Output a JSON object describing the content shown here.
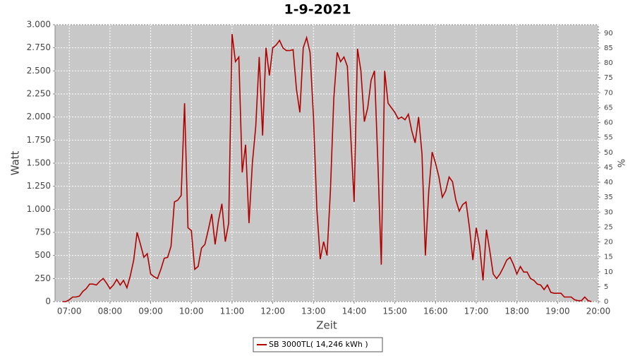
{
  "chart_data": {
    "type": "line",
    "title": "1-9-2021",
    "x_label": "Zeit",
    "y_label": "Watt",
    "y2_label": "%",
    "x": [
      "06:50",
      "06:55",
      "07:00",
      "07:05",
      "07:10",
      "07:15",
      "07:20",
      "07:25",
      "07:30",
      "07:35",
      "07:40",
      "07:45",
      "07:50",
      "07:55",
      "08:00",
      "08:05",
      "08:10",
      "08:15",
      "08:20",
      "08:25",
      "08:30",
      "08:35",
      "08:40",
      "08:45",
      "08:50",
      "08:55",
      "09:00",
      "09:05",
      "09:10",
      "09:15",
      "09:20",
      "09:25",
      "09:30",
      "09:35",
      "09:40",
      "09:45",
      "09:50",
      "09:55",
      "10:00",
      "10:05",
      "10:10",
      "10:15",
      "10:20",
      "10:25",
      "10:30",
      "10:35",
      "10:40",
      "10:45",
      "10:50",
      "10:55",
      "11:00",
      "11:05",
      "11:10",
      "11:15",
      "11:20",
      "11:25",
      "11:30",
      "11:35",
      "11:40",
      "11:45",
      "11:50",
      "11:55",
      "12:00",
      "12:05",
      "12:10",
      "12:15",
      "12:20",
      "12:25",
      "12:30",
      "12:35",
      "12:40",
      "12:45",
      "12:50",
      "12:55",
      "13:00",
      "13:05",
      "13:10",
      "13:15",
      "13:20",
      "13:25",
      "13:30",
      "13:35",
      "13:40",
      "13:45",
      "13:50",
      "13:55",
      "14:00",
      "14:05",
      "14:10",
      "14:15",
      "14:20",
      "14:25",
      "14:30",
      "14:35",
      "14:40",
      "14:45",
      "14:50",
      "14:55",
      "15:00",
      "15:05",
      "15:10",
      "15:15",
      "15:20",
      "15:25",
      "15:30",
      "15:35",
      "15:40",
      "15:45",
      "15:50",
      "15:55",
      "16:00",
      "16:05",
      "16:10",
      "16:15",
      "16:20",
      "16:25",
      "16:30",
      "16:35",
      "16:40",
      "16:45",
      "16:50",
      "16:55",
      "17:00",
      "17:05",
      "17:10",
      "17:15",
      "17:20",
      "17:25",
      "17:30",
      "17:35",
      "17:40",
      "17:45",
      "17:50",
      "17:55",
      "18:00",
      "18:05",
      "18:10",
      "18:15",
      "18:20",
      "18:25",
      "18:30",
      "18:35",
      "18:40",
      "18:45",
      "18:50",
      "18:55",
      "19:00",
      "19:05",
      "19:10",
      "19:15",
      "19:20",
      "19:25",
      "19:30",
      "19:35",
      "19:40",
      "19:45",
      "19:50"
    ],
    "series": [
      {
        "name": "SB 3000TL( 14,246 kWh )",
        "color": "#b00000",
        "values": [
          0,
          0,
          20,
          50,
          50,
          60,
          110,
          140,
          190,
          190,
          180,
          220,
          250,
          200,
          140,
          180,
          240,
          180,
          230,
          150,
          280,
          450,
          750,
          620,
          480,
          520,
          300,
          270,
          250,
          350,
          470,
          480,
          600,
          1080,
          1100,
          1150,
          2150,
          800,
          770,
          350,
          380,
          580,
          620,
          780,
          950,
          620,
          880,
          1060,
          650,
          850,
          2900,
          2600,
          2650,
          1400,
          1700,
          850,
          1500,
          1900,
          2650,
          1800,
          2750,
          2450,
          2750,
          2780,
          2830,
          2750,
          2720,
          2720,
          2730,
          2300,
          2050,
          2750,
          2860,
          2700,
          2000,
          1000,
          460,
          650,
          500,
          1200,
          2200,
          2700,
          2600,
          2650,
          2550,
          1800,
          1080,
          2740,
          2500,
          1950,
          2100,
          2400,
          2500,
          1500,
          400,
          2500,
          2150,
          2100,
          2050,
          1980,
          2000,
          1970,
          2030,
          1850,
          1720,
          2000,
          1600,
          500,
          1200,
          1620,
          1500,
          1350,
          1130,
          1200,
          1350,
          1300,
          1100,
          980,
          1050,
          1080,
          800,
          450,
          800,
          600,
          230,
          780,
          550,
          300,
          250,
          300,
          370,
          450,
          480,
          400,
          300,
          380,
          320,
          320,
          250,
          230,
          190,
          180,
          130,
          180,
          100,
          90,
          90,
          90,
          50,
          50,
          50,
          20,
          10,
          10,
          50,
          10,
          0
        ]
      }
    ],
    "xlim": [
      "06:39",
      "20:00"
    ],
    "xticks": [
      "07:00",
      "08:00",
      "09:00",
      "10:00",
      "11:00",
      "12:00",
      "13:00",
      "14:00",
      "15:00",
      "16:00",
      "17:00",
      "18:00",
      "19:00",
      "20:00"
    ],
    "ylim": [
      0,
      3000
    ],
    "yticks": [
      0,
      250,
      500,
      750,
      {
        "value": 1000,
        "label": "1.000"
      },
      {
        "value": 1250,
        "label": "1.250"
      },
      {
        "value": 1500,
        "label": "1.500"
      },
      {
        "value": 1750,
        "label": "1.750"
      },
      {
        "value": 2000,
        "label": "2.000"
      },
      {
        "value": 2250,
        "label": "2.250"
      },
      {
        "value": 2500,
        "label": "2.500"
      },
      {
        "value": 2750,
        "label": "2.750"
      },
      {
        "value": 3000,
        "label": "3.000"
      }
    ],
    "y2lim": [
      0,
      92.8
    ],
    "y2ticks": [
      0,
      5,
      10,
      15,
      20,
      25,
      30,
      35,
      40,
      45,
      50,
      55,
      60,
      65,
      70,
      75,
      80,
      85,
      90
    ],
    "grid": true,
    "plot_background": "#c8c8c8",
    "legend": "bottom"
  }
}
